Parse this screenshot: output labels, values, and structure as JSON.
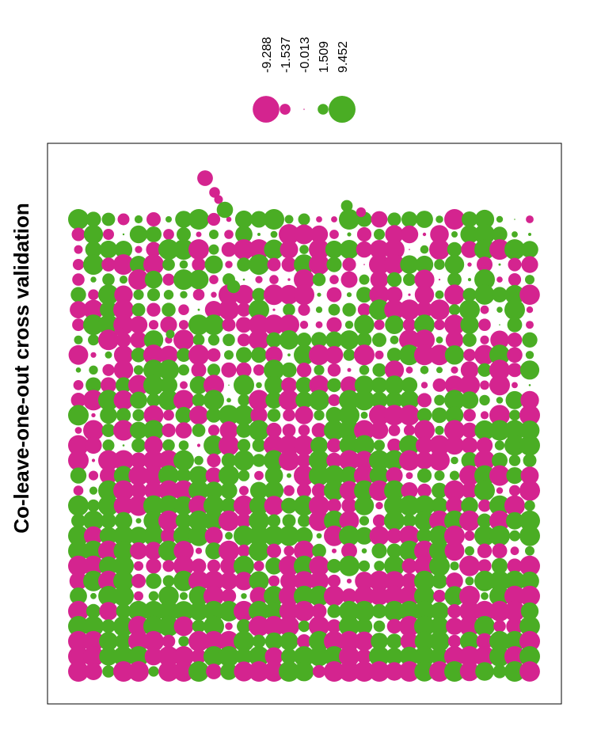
{
  "chart_data": {
    "type": "scatter",
    "subtype": "bubble-grid",
    "title": "",
    "ylabel": "Co-leave-one-out cross validation",
    "xlabel": "",
    "grid": false,
    "legend_position": "top",
    "size_encodes": "absolute value",
    "color_encodes": "sign",
    "colors": {
      "negative": "#D4248F",
      "positive": "#4AAD24"
    },
    "legend": [
      {
        "label": "-9.288",
        "value": -9.288
      },
      {
        "label": "-1.537",
        "value": -1.537
      },
      {
        "label": "-0.013",
        "value": -0.013
      },
      {
        "label": "1.509",
        "value": 1.509
      },
      {
        "label": "9.452",
        "value": 9.452
      }
    ],
    "value_range": [
      -9.288,
      9.452
    ],
    "grid_size": {
      "columns": 31,
      "rows": 31
    }
  }
}
